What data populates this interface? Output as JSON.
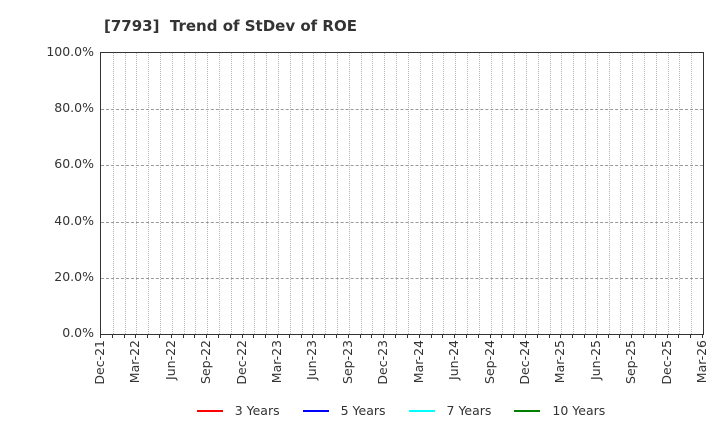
{
  "page": {
    "background": "#ffffff",
    "text_color": "#333333",
    "axis_color": "#333333",
    "grid_vertical_color": "#b5b5b5",
    "grid_horizontal_color": "#9a9a9a"
  },
  "chart_data": {
    "type": "line",
    "title": "[7793]  Trend of StDev of ROE",
    "xlabel": "",
    "ylabel": "",
    "x_tick_labels": [
      "Dec-21",
      "Mar-22",
      "Jun-22",
      "Sep-22",
      "Dec-22",
      "Mar-23",
      "Jun-23",
      "Sep-23",
      "Dec-23",
      "Mar-24",
      "Jun-24",
      "Sep-24",
      "Dec-24",
      "Mar-25",
      "Jun-25",
      "Sep-25",
      "Dec-25",
      "Mar-26"
    ],
    "x_label_rotation_deg": 90,
    "months_total": 51,
    "x_label_every_months": 3,
    "y_tick_labels": [
      "0.0%",
      "20.0%",
      "40.0%",
      "60.0%",
      "80.0%",
      "100.0%"
    ],
    "y_tick_values": [
      0,
      20,
      40,
      60,
      80,
      100
    ],
    "ylim": [
      0,
      100
    ],
    "y_major_step": 20,
    "grid": {
      "vertical": "dotted, monthly",
      "horizontal": "dashed, every 20%"
    },
    "legend_position": "bottom",
    "series": [
      {
        "name": "3 Years",
        "color": "#ff0000",
        "values": []
      },
      {
        "name": "5 Years",
        "color": "#0000ff",
        "values": []
      },
      {
        "name": "7 Years",
        "color": "#00ffff",
        "values": []
      },
      {
        "name": "10 Years",
        "color": "#008000",
        "values": []
      }
    ],
    "no_data_visible": true
  }
}
